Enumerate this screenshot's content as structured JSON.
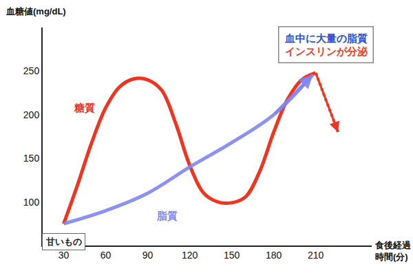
{
  "chart_data": {
    "type": "line",
    "y_label": "血糖値(mg/dL)",
    "x_label": "食後経過\n時間(分)",
    "xlim": [
      15,
      250
    ],
    "ylim": [
      50,
      300
    ],
    "xticks": [
      30,
      60,
      90,
      120,
      150,
      180,
      210
    ],
    "yticks": [
      100,
      150,
      200,
      250
    ],
    "grid": false,
    "series": [
      {
        "name": "糖質",
        "color": "#f5321e",
        "line_style": "solid",
        "x": [
          30,
          40,
          50,
          60,
          70,
          80,
          90,
          100,
          110,
          120,
          130,
          140,
          150,
          160,
          170,
          180,
          190,
          200,
          210
        ],
        "values": [
          75,
          120,
          168,
          208,
          232,
          241,
          240,
          228,
          190,
          142,
          110,
          100,
          99,
          106,
          135,
          180,
          218,
          240,
          248
        ]
      },
      {
        "name": "脂質",
        "color": "#7f86f5",
        "line_style": "solid",
        "x": [
          30,
          60,
          90,
          120,
          150,
          180,
          208
        ],
        "values": [
          75,
          90,
          110,
          140,
          168,
          200,
          246
        ]
      }
    ],
    "drop": {
      "color": "#f5321e",
      "line_style": "dot",
      "x": [
        210,
        226
      ],
      "values": [
        248,
        180
      ]
    },
    "valley_label": "甘いもの",
    "box": [
      {
        "text": "血中に大量の脂質",
        "color": "#2a4de0"
      },
      {
        "text": "インスリンが分泌",
        "color": "#f03a1c"
      }
    ]
  }
}
